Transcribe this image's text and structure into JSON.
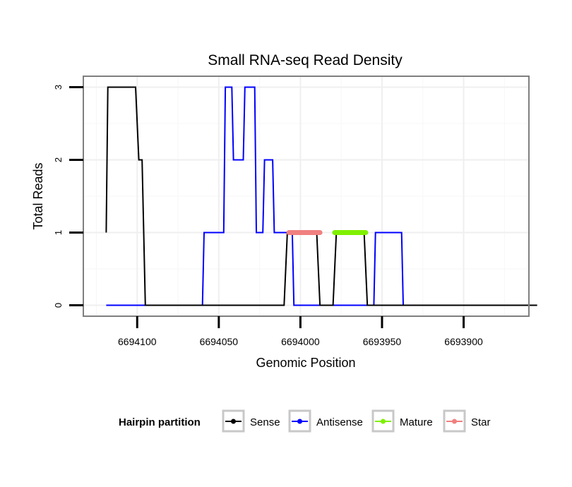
{
  "chart_data": {
    "type": "line",
    "title": "Small RNA-seq Read Density",
    "xlabel": "Genomic Position",
    "ylabel": "Total Reads",
    "xlim": [
      6694133,
      6693860
    ],
    "x_reversed": true,
    "ylim": [
      -0.15,
      3.15
    ],
    "x_ticks": [
      6694100,
      6694050,
      6694000,
      6693950,
      6693900
    ],
    "x_tick_labels": [
      "6694100",
      "6694050",
      "6694000",
      "6693950",
      "6693900"
    ],
    "y_ticks": [
      0,
      1,
      2,
      3
    ],
    "y_tick_labels": [
      "0",
      "1",
      "2",
      "3"
    ],
    "grid": true,
    "legend": {
      "title": "Hairpin partition",
      "position": "bottom",
      "entries": [
        "Sense",
        "Antisense",
        "Mature",
        "Star"
      ]
    },
    "series": [
      {
        "name": "Sense",
        "color": "#000000",
        "points": [
          [
            6694119,
            1
          ],
          [
            6694118,
            3
          ],
          [
            6694101,
            3
          ],
          [
            6694099,
            2
          ],
          [
            6694097,
            2
          ],
          [
            6694095,
            0
          ],
          [
            6694010,
            0
          ],
          [
            6694008,
            1
          ],
          [
            6693990,
            1
          ],
          [
            6693988,
            0
          ],
          [
            6693980,
            0
          ],
          [
            6693978,
            1
          ],
          [
            6693961,
            1
          ],
          [
            6693959,
            0
          ],
          [
            6693855,
            0
          ]
        ]
      },
      {
        "name": "Antisense",
        "color": "#0000ff",
        "points": [
          [
            6694119,
            0
          ],
          [
            6694060,
            0
          ],
          [
            6694059,
            1
          ],
          [
            6694047,
            1
          ],
          [
            6694046,
            3
          ],
          [
            6694042,
            3
          ],
          [
            6694041,
            2
          ],
          [
            6694035,
            2
          ],
          [
            6694034,
            3
          ],
          [
            6694028,
            3
          ],
          [
            6694027,
            1
          ],
          [
            6694023,
            1
          ],
          [
            6694022,
            2
          ],
          [
            6694017,
            2
          ],
          [
            6694016,
            1
          ],
          [
            6694005,
            1
          ],
          [
            6694004,
            0
          ],
          [
            6693955,
            0
          ],
          [
            6693954,
            1
          ],
          [
            6693938,
            1
          ],
          [
            6693937,
            0
          ],
          [
            6693855,
            0
          ]
        ]
      },
      {
        "name": "Mature",
        "color": "#7ff000",
        "points": [
          [
            6693979,
            1
          ],
          [
            6693960,
            1
          ]
        ]
      },
      {
        "name": "Star",
        "color": "#f08080",
        "points": [
          [
            6694007,
            1
          ],
          [
            6693988,
            1
          ]
        ]
      }
    ]
  }
}
